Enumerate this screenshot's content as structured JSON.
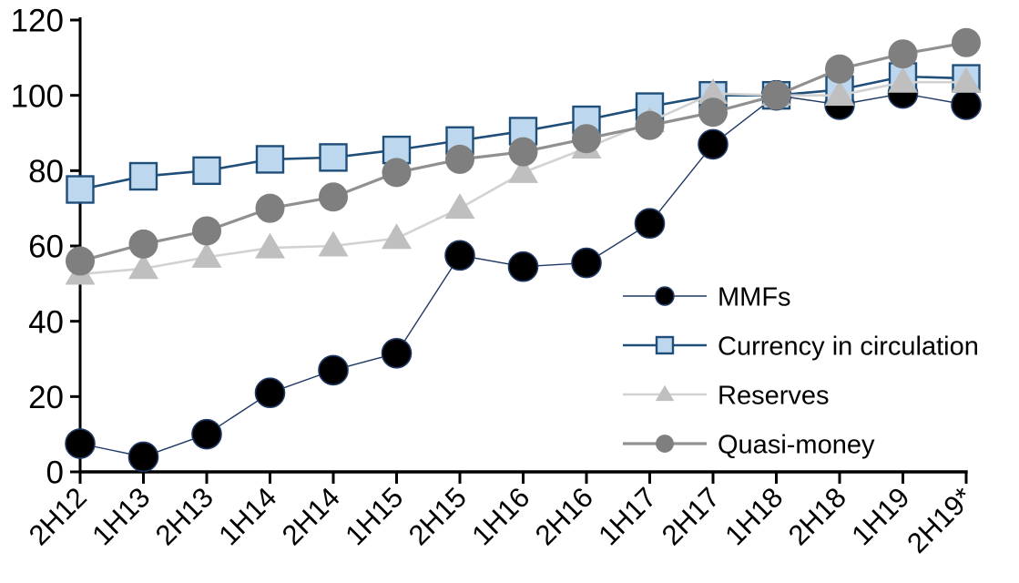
{
  "chart_data": {
    "type": "line",
    "title": "",
    "xlabel": "",
    "ylabel": "",
    "grid": false,
    "legend_position": "inside-right",
    "axis_color": "#000000",
    "background_color": "#ffffff",
    "ylim": [
      0,
      120
    ],
    "ytick_step": 20,
    "yticks": [
      "0",
      "20",
      "40",
      "60",
      "80",
      "100",
      "120"
    ],
    "categories": [
      "2H12",
      "1H13",
      "2H13",
      "1H14",
      "2H14",
      "1H15",
      "2H15",
      "1H16",
      "2H16",
      "1H17",
      "2H17",
      "1H18",
      "2H18",
      "1H19",
      "2H19*"
    ],
    "series": [
      {
        "name": "MMFs",
        "marker": "circle",
        "marker_fill": "#000000",
        "marker_stroke": "#1f3864",
        "line_color": "#1f3864",
        "line_width": 1.4,
        "values": [
          7.5,
          4,
          10,
          21,
          27,
          31.5,
          57.5,
          54.5,
          55.5,
          66,
          87,
          100,
          97.5,
          100.5,
          97.5
        ]
      },
      {
        "name": "Currency in circulation",
        "marker": "square",
        "marker_fill": "#bdd7ee",
        "marker_stroke": "#1f4e79",
        "line_color": "#1f4e79",
        "line_width": 2.6,
        "values": [
          75,
          78.5,
          80,
          83,
          83.5,
          85.5,
          88,
          90.5,
          93.5,
          97,
          100,
          100,
          101.5,
          105,
          104.5
        ]
      },
      {
        "name": "Reserves",
        "marker": "triangle",
        "marker_fill": "#bfbfbf",
        "marker_stroke": "none",
        "line_color": "#d2d2d2",
        "line_width": 2.6,
        "values": [
          52.5,
          54,
          57,
          59.5,
          60,
          62,
          70,
          79.5,
          86,
          93,
          100.5,
          100,
          100,
          103.5,
          103.5
        ]
      },
      {
        "name": "Quasi-money",
        "marker": "circle",
        "marker_fill": "#7f7f7f",
        "marker_stroke": "none",
        "line_color": "#909090",
        "line_width": 3.2,
        "values": [
          56,
          60.5,
          64,
          70,
          73,
          79.5,
          83,
          85,
          88.5,
          92,
          95.5,
          100,
          107,
          111,
          114
        ]
      }
    ]
  }
}
